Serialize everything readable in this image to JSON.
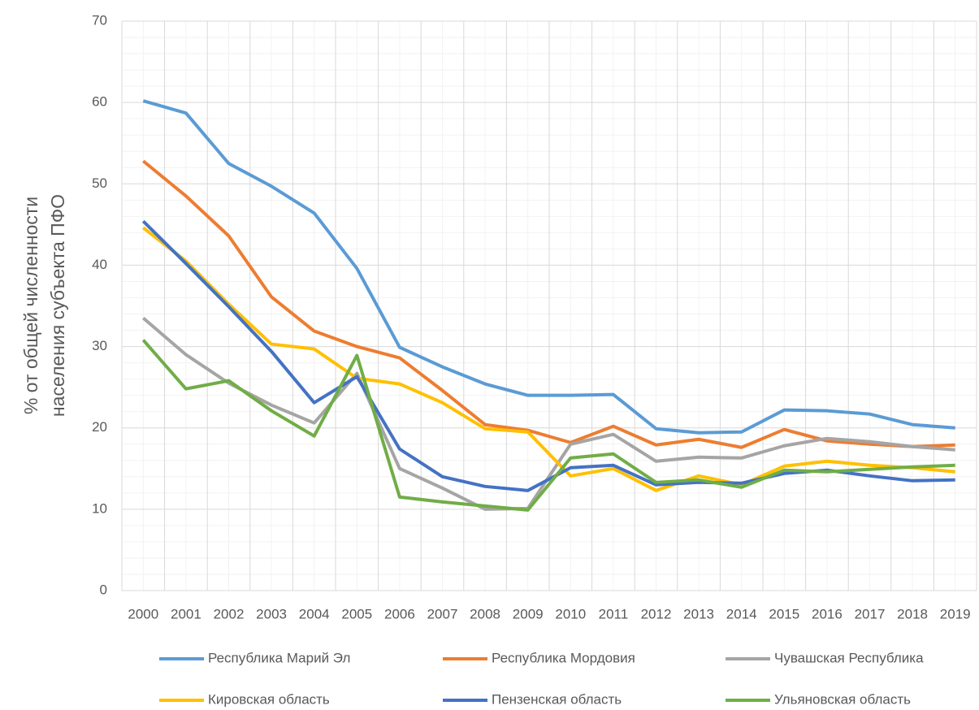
{
  "chart_data": {
    "type": "line",
    "ylabel": [
      "% от общей численности",
      "населения субъекта ПФО"
    ],
    "categories": [
      "2000",
      "2001",
      "2002",
      "2003",
      "2004",
      "2005",
      "2006",
      "2007",
      "2008",
      "2009",
      "2010",
      "2011",
      "2012",
      "2013",
      "2014",
      "2015",
      "2016",
      "2017",
      "2018",
      "2019"
    ],
    "series": [
      {
        "name": "Республика Марий Эл",
        "color": "#5b9bd5",
        "values": [
          60.2,
          58.7,
          52.5,
          49.7,
          46.4,
          39.6,
          29.9,
          27.5,
          25.4,
          24.0,
          24.0,
          24.1,
          19.9,
          19.4,
          19.5,
          22.2,
          22.1,
          21.7,
          20.4,
          20.0
        ]
      },
      {
        "name": "Республика Мордовия",
        "color": "#ed7d31",
        "values": [
          52.8,
          48.5,
          43.6,
          36.1,
          31.9,
          30.0,
          28.6,
          24.6,
          20.4,
          19.7,
          18.2,
          20.2,
          17.9,
          18.6,
          17.6,
          19.8,
          18.4,
          18.0,
          17.7,
          17.9
        ]
      },
      {
        "name": "Чувашская Республика",
        "color": "#a5a5a5",
        "values": [
          33.5,
          29.0,
          25.5,
          22.8,
          20.6,
          26.7,
          15.0,
          12.6,
          10.0,
          10.1,
          18.0,
          19.2,
          15.9,
          16.4,
          16.3,
          17.8,
          18.7,
          18.3,
          17.7,
          17.3
        ]
      },
      {
        "name": "Кировская область",
        "color": "#ffc000",
        "values": [
          44.6,
          40.5,
          35.2,
          30.3,
          29.7,
          26.1,
          25.4,
          23.1,
          19.9,
          19.5,
          14.1,
          15.0,
          12.3,
          14.1,
          13.0,
          15.3,
          15.9,
          15.4,
          15.1,
          14.6
        ]
      },
      {
        "name": "Пензенская область",
        "color": "#4472c4",
        "values": [
          45.4,
          40.2,
          34.9,
          29.4,
          23.1,
          26.3,
          17.4,
          14.0,
          12.8,
          12.3,
          15.1,
          15.4,
          13.0,
          13.3,
          13.2,
          14.4,
          14.8,
          14.1,
          13.5,
          13.6
        ]
      },
      {
        "name": "Ульяновская область",
        "color": "#70ad47",
        "values": [
          30.8,
          24.8,
          25.8,
          22.1,
          19.0,
          28.9,
          11.5,
          10.9,
          10.4,
          9.9,
          16.3,
          16.8,
          13.3,
          13.6,
          12.7,
          14.8,
          14.6,
          14.9,
          15.2,
          15.4
        ]
      }
    ],
    "ylim": [
      0,
      70
    ],
    "yticks": [
      0,
      10,
      20,
      30,
      40,
      50,
      60,
      70
    ],
    "grid": true,
    "legend": "bottom"
  }
}
